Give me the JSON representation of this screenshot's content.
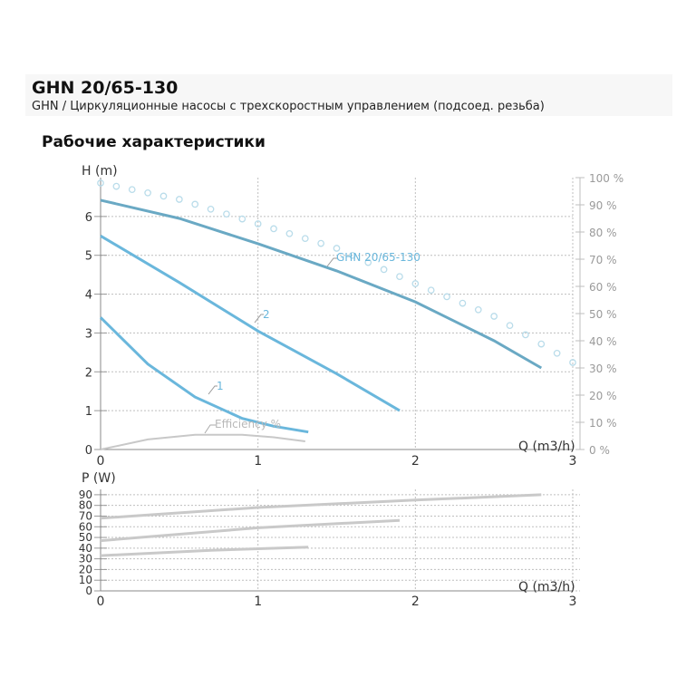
{
  "header": {
    "title": "GHN 20/65-130",
    "subtitle": "GHN / Циркуляционные насосы с трехскоростным управлением (подсоед. резьба)"
  },
  "section_title": "Рабочие характеристики",
  "colors": {
    "curve_max": "#6aa9c4",
    "curve_speed": "#6ab7dc",
    "efficiency": "#c8c8c8",
    "efficiency_ref_dots": "#b9dcea",
    "power": "#c9c9c9",
    "grid": "#bfbfbf",
    "axis_text": "#333333",
    "right_axis_text": "#9a9a9a"
  },
  "chart_data": [
    {
      "type": "line",
      "title": "",
      "xlabel": "Q (m3/h)",
      "ylabel": "H (m)",
      "y2label": "%",
      "xlim": [
        0,
        3
      ],
      "ylim": [
        0,
        7
      ],
      "y2lim": [
        0,
        100
      ],
      "xticks": [
        "0",
        "1",
        "2",
        "3"
      ],
      "yticks": [
        "0",
        "1",
        "2",
        "3",
        "4",
        "5",
        "6"
      ],
      "y2ticks": [
        "0 %",
        "10 %",
        "20 %",
        "30 %",
        "40 %",
        "50 %",
        "60 %",
        "70 %",
        "80 %",
        "90 %",
        "100 %"
      ],
      "grid": true,
      "series": [
        {
          "name": "GHN 20/65-130",
          "x": [
            0,
            0.5,
            1.0,
            1.5,
            2.0,
            2.5,
            2.8
          ],
          "y": [
            6.42,
            5.95,
            5.3,
            4.6,
            3.8,
            2.8,
            2.1
          ]
        },
        {
          "name": "2",
          "x": [
            0,
            0.5,
            1.0,
            1.5,
            1.9
          ],
          "y": [
            5.5,
            4.3,
            3.05,
            1.95,
            1.0
          ]
        },
        {
          "name": "1",
          "x": [
            0,
            0.3,
            0.6,
            0.9,
            1.1,
            1.32
          ],
          "y": [
            3.4,
            2.2,
            1.35,
            0.8,
            0.6,
            0.45
          ]
        },
        {
          "name": "Efficiency %",
          "axis": "right",
          "x": [
            0,
            0.3,
            0.6,
            0.9,
            1.1,
            1.3
          ],
          "y": [
            0,
            3.7,
            5.4,
            5.4,
            4.5,
            3.0
          ]
        },
        {
          "axis": "right",
          "style": "dotted",
          "x": [
            0,
            0.5,
            1.0,
            1.5,
            2.0,
            2.5,
            3.0
          ],
          "y": [
            98,
            92,
            83,
            74,
            61,
            49,
            32
          ]
        }
      ]
    },
    {
      "type": "line",
      "title": "",
      "xlabel": "Q (m3/h)",
      "ylabel": "P (W)",
      "xlim": [
        0,
        3
      ],
      "ylim": [
        0,
        95
      ],
      "xticks": [
        "0",
        "1",
        "2",
        "3"
      ],
      "yticks": [
        "0",
        "10",
        "20",
        "30",
        "40",
        "50",
        "60",
        "70",
        "80",
        "90"
      ],
      "grid": true,
      "series": [
        {
          "x": [
            0,
            1.0,
            2.0,
            2.8
          ],
          "y": [
            68,
            78,
            85,
            90
          ]
        },
        {
          "x": [
            0,
            1.0,
            1.9
          ],
          "y": [
            47,
            59,
            66
          ]
        },
        {
          "x": [
            0,
            0.7,
            1.32
          ],
          "y": [
            33,
            38,
            41
          ]
        }
      ]
    }
  ]
}
